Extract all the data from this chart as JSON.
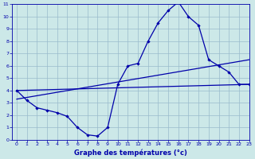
{
  "line1_x": [
    0,
    1,
    2,
    3,
    4,
    5,
    6,
    7,
    8,
    9,
    10,
    11,
    12,
    13,
    14,
    15,
    16,
    17,
    18,
    19,
    20,
    21,
    22,
    23
  ],
  "line1_y": [
    4.0,
    3.2,
    2.6,
    2.4,
    2.2,
    1.9,
    1.0,
    0.4,
    0.3,
    1.0,
    4.5,
    6.0,
    6.2,
    8.0,
    9.5,
    10.5,
    11.2,
    10.0,
    9.3,
    6.5,
    6.0,
    5.5,
    4.5,
    4.5
  ],
  "line2_x": [
    0,
    23
  ],
  "line2_y": [
    4.0,
    4.5
  ],
  "line3_x": [
    0,
    23
  ],
  "line3_y": [
    3.3,
    6.5
  ],
  "line_color": "#0000aa",
  "bg_color": "#cce8e8",
  "grid_color": "#99bbcc",
  "xlabel": "Graphe des températures (°c)",
  "xlabel_color": "#0000aa",
  "xlim": [
    -0.5,
    23
  ],
  "ylim": [
    0,
    11
  ],
  "xticks": [
    0,
    1,
    2,
    3,
    4,
    5,
    6,
    7,
    8,
    9,
    10,
    11,
    12,
    13,
    14,
    15,
    16,
    17,
    18,
    19,
    20,
    21,
    22,
    23
  ],
  "yticks": [
    0,
    1,
    2,
    3,
    4,
    5,
    6,
    7,
    8,
    9,
    10,
    11
  ],
  "tick_fontsize": 4.5,
  "xlabel_fontsize": 6.0
}
